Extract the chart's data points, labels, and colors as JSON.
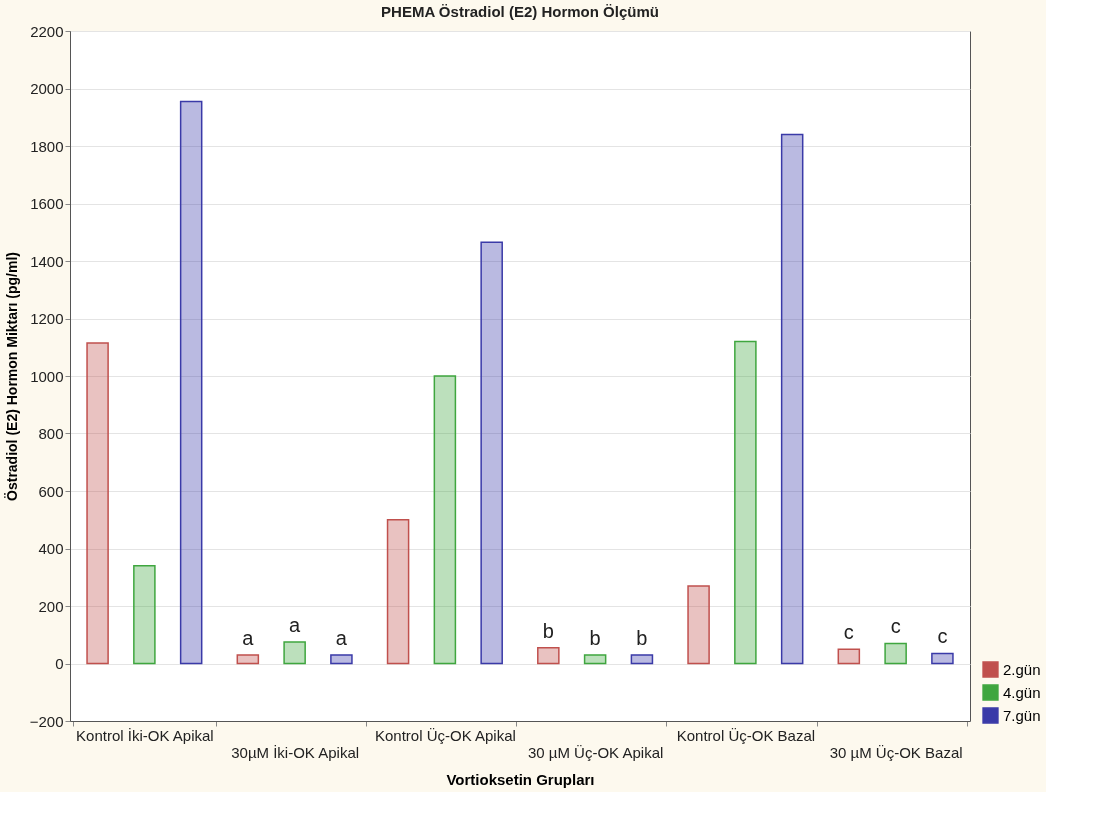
{
  "chart_data": {
    "type": "bar",
    "title": "PHEMA Östradiol (E2) Hormon Ölçümü",
    "xlabel": "Vortioksetin Grupları",
    "ylabel": "Östradiol (E2) Hormon Miktarı (pg/ml)",
    "categories": [
      "Kontrol İki-OK Apikal",
      "30µM İki-OK Apikal",
      "Kontrol Üç-OK Apikal",
      "30 µM Üç-OK Apikal",
      "Kontrol Üç-OK Bazal",
      "30 µM Üç-OK Bazal"
    ],
    "series": [
      {
        "name": "2.gün",
        "color": "#c0504d",
        "values": [
          1115,
          30,
          500,
          55,
          270,
          50
        ],
        "value_labels": [
          null,
          "a",
          null,
          "b",
          null,
          "c"
        ]
      },
      {
        "name": "4.gün",
        "color": "#3fa63f",
        "values": [
          340,
          75,
          1000,
          30,
          1120,
          70
        ],
        "value_labels": [
          null,
          "a",
          null,
          "b",
          null,
          "c"
        ]
      },
      {
        "name": "7.gün",
        "color": "#3a3aa8",
        "values": [
          1955,
          30,
          1465,
          30,
          1840,
          35
        ],
        "value_labels": [
          null,
          "a",
          null,
          "b",
          null,
          "c"
        ]
      }
    ],
    "ylim": [
      -200,
      2200
    ],
    "yticks": [
      -200,
      0,
      200,
      400,
      600,
      800,
      1000,
      1200,
      1400,
      1600,
      1800,
      2000,
      2200
    ],
    "grid": "y",
    "legend": "bottom right"
  }
}
